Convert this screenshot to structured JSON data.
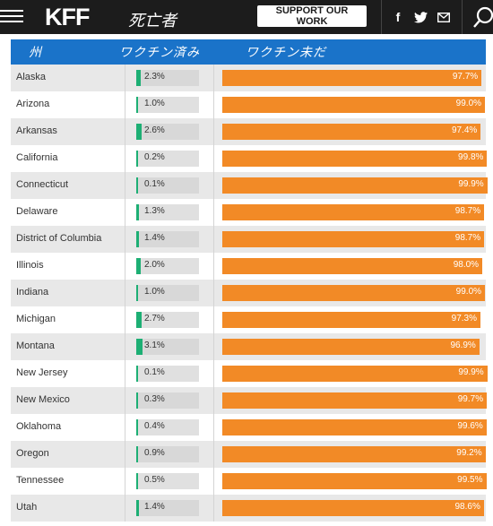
{
  "header": {
    "logo": "KFF",
    "handwritten_title": "死亡者",
    "support_button": "SUPPORT OUR WORK",
    "social_icons": [
      "facebook-icon",
      "twitter-icon",
      "email-icon"
    ],
    "colors": {
      "bar": "#1c1c1c",
      "button": "#ffffff"
    }
  },
  "table": {
    "columns": [
      "州",
      "ワクチン済み",
      "ワクチン未だ"
    ],
    "colors": {
      "header": "#1a73c9",
      "vaccinated": "#1daf74",
      "unvaccinated": "#f28a26"
    }
  },
  "chart_data": {
    "type": "bar",
    "categories": [
      "Alaska",
      "Arizona",
      "Arkansas",
      "California",
      "Connecticut",
      "Delaware",
      "District of Columbia",
      "Illinois",
      "Indiana",
      "Michigan",
      "Montana",
      "New Jersey",
      "New Mexico",
      "Oklahoma",
      "Oregon",
      "Tennessee",
      "Utah"
    ],
    "series": [
      {
        "values": [
          2.3,
          1.0,
          2.6,
          0.2,
          0.1,
          1.3,
          1.4,
          2.0,
          1.0,
          2.7,
          3.1,
          0.1,
          0.3,
          0.4,
          0.9,
          0.5,
          1.4
        ]
      },
      {
        "values": [
          97.7,
          99.0,
          97.4,
          99.8,
          99.9,
          98.7,
          98.7,
          98.0,
          99.0,
          97.3,
          96.9,
          99.9,
          99.7,
          99.6,
          99.2,
          99.5,
          98.6
        ]
      }
    ],
    "labels": [
      [
        "2.3%",
        "1.0%",
        "2.6%",
        "0.2%",
        "0.1%",
        "1.3%",
        "1.4%",
        "2.0%",
        "1.0%",
        "2.7%",
        "3.1%",
        "0.1%",
        "0.3%",
        "0.4%",
        "0.9%",
        "0.5%",
        "1.4%"
      ],
      [
        "97.7%",
        "99.0%",
        "97.4%",
        "99.8%",
        "99.9%",
        "98.7%",
        "98.7%",
        "98.0%",
        "99.0%",
        "97.3%",
        "96.9%",
        "99.9%",
        "99.7%",
        "99.6%",
        "99.2%",
        "99.5%",
        "98.6%"
      ]
    ],
    "xlim": [
      0,
      100
    ],
    "unit": "%"
  }
}
